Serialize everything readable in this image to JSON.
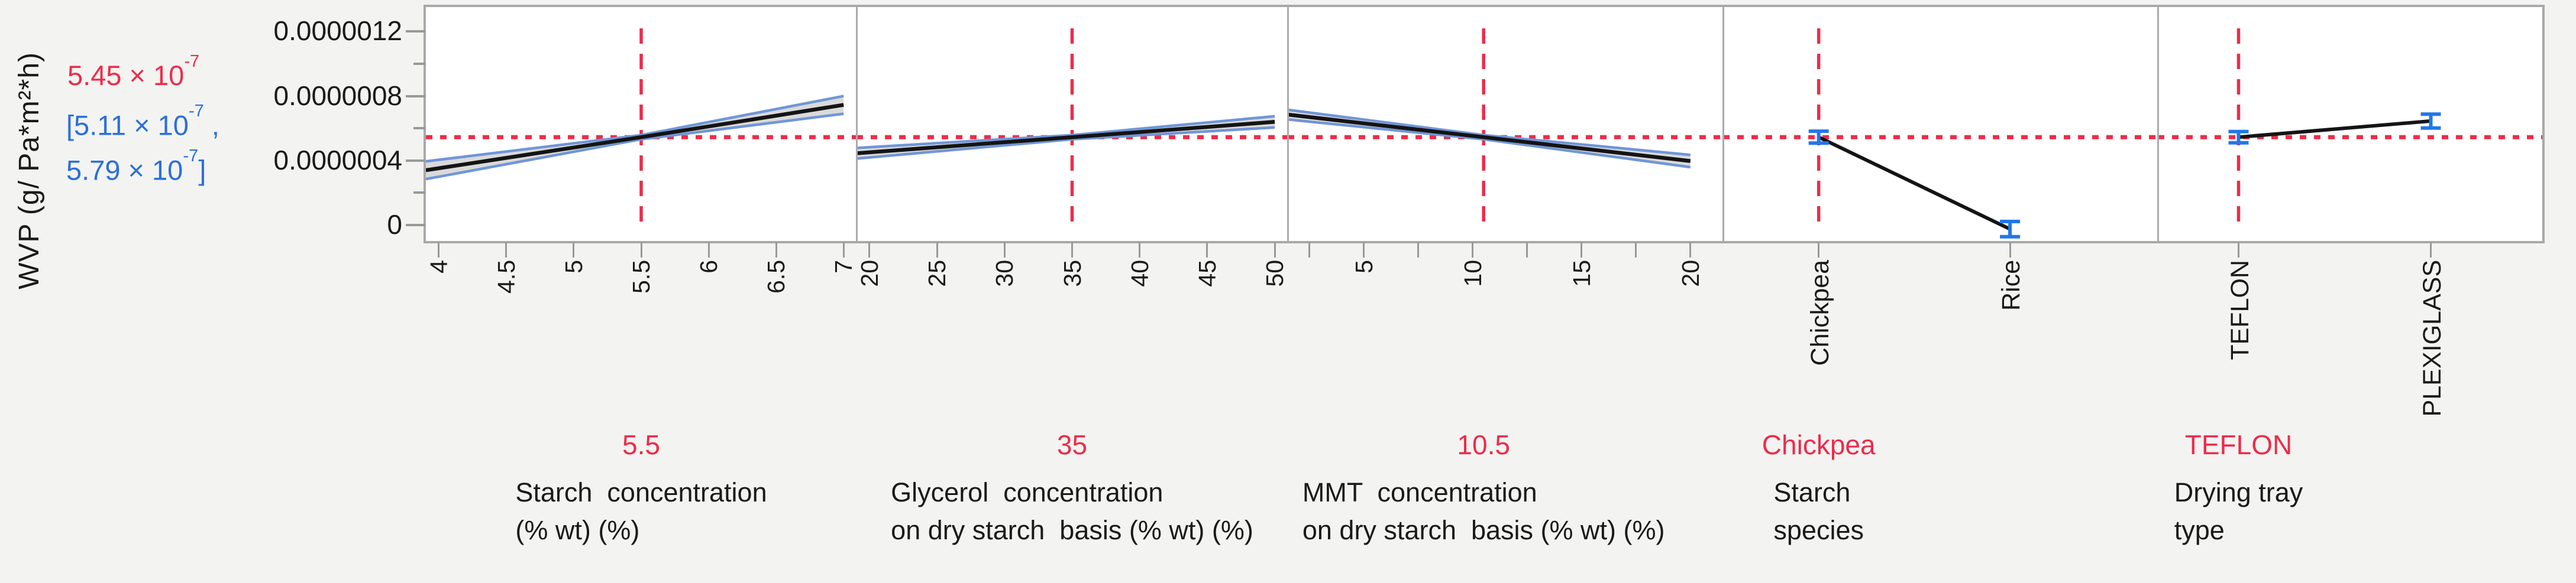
{
  "page": {
    "background": "#f3f3f2"
  },
  "colors": {
    "red": "#ED2C49",
    "blue_text": "#2B6FD9",
    "blue_marker": "#2277E8",
    "band_fill": "#DADADA",
    "band_edge": "#7096D8",
    "mean_line": "#141414",
    "panel_border": "#A9A9A9",
    "tick": "#999999",
    "text": "#1A1A1A",
    "panel_bg": "#FFFFFF"
  },
  "response": {
    "axis_label_line1": "WVP (g/",
    "axis_label_line2": "Pa*m²*h)",
    "predicted_base": "5.45 × 10",
    "predicted_exp": "-7",
    "ci_line1_base": "[5.11 × 10",
    "ci_line1_exp": "-7",
    "ci_line1_tail": " ,",
    "ci_line2_base": "5.79 × 10",
    "ci_line2_exp": "-7",
    "ci_line2_tail": "]"
  },
  "chart_data": {
    "type": "line",
    "subtype": "prediction-profiler",
    "value_unit": "1e-7 g/(Pa*m^2*h)",
    "predicted_value": 5.45,
    "predicted_ci": [
      5.11,
      5.79
    ],
    "y_axis": {
      "major_ticks": [
        {
          "v": 0,
          "label": "0"
        },
        {
          "v": 4,
          "label": "0.0000004"
        },
        {
          "v": 8,
          "label": "0.0000008"
        },
        {
          "v": 12,
          "label": "0.0000012"
        }
      ],
      "minor_tick_values": [
        2,
        6,
        10
      ]
    },
    "factors": [
      {
        "id": "starch-concentration",
        "type": "continuous",
        "current_value_label": "5.5",
        "current_value": 5.5,
        "name_lines": [
          "Starch  concentration",
          "(% wt) (%)"
        ],
        "crosshair_f": 0.5,
        "ticks": [
          {
            "f": 0.03,
            "label": "4"
          },
          {
            "f": 0.18667,
            "label": "4.5"
          },
          {
            "f": 0.34333,
            "label": "5"
          },
          {
            "f": 0.5,
            "label": "5.5"
          },
          {
            "f": 0.65667,
            "label": "6"
          },
          {
            "f": 0.81333,
            "label": "6.5"
          },
          {
            "f": 0.97,
            "label": "7"
          }
        ],
        "mean": [
          [
            0,
            3.4
          ],
          [
            0.5,
            5.45
          ],
          [
            0.97,
            7.45
          ]
        ],
        "band_top": [
          [
            0,
            3.95
          ],
          [
            0.5,
            5.58
          ],
          [
            0.97,
            8.0
          ]
        ],
        "band_bottom": [
          [
            0,
            2.85
          ],
          [
            0.5,
            5.32
          ],
          [
            0.97,
            6.9
          ]
        ]
      },
      {
        "id": "glycerol-concentration",
        "type": "continuous",
        "current_value_label": "35",
        "current_value": 35,
        "name_lines": [
          "Glycerol  concentration",
          "on dry starch  basis (% wt) (%)"
        ],
        "crosshair_f": 0.5,
        "ticks": [
          {
            "f": 0.03,
            "label": "20"
          },
          {
            "f": 0.18667,
            "label": "25"
          },
          {
            "f": 0.34333,
            "label": "30"
          },
          {
            "f": 0.5,
            "label": "35"
          },
          {
            "f": 0.65667,
            "label": "40"
          },
          {
            "f": 0.81333,
            "label": "45"
          },
          {
            "f": 0.97,
            "label": "50"
          }
        ],
        "mean": [
          [
            0,
            4.45
          ],
          [
            0.5,
            5.45
          ],
          [
            0.97,
            6.4
          ]
        ],
        "band_top": [
          [
            0,
            4.78
          ],
          [
            0.5,
            5.58
          ],
          [
            0.97,
            6.75
          ]
        ],
        "band_bottom": [
          [
            0,
            4.12
          ],
          [
            0.5,
            5.32
          ],
          [
            0.97,
            6.05
          ]
        ]
      },
      {
        "id": "mmt-concentration",
        "type": "continuous",
        "current_value_label": "10.5",
        "current_value": 10.5,
        "name_lines": [
          "MMT  concentration",
          "on dry starch  basis (% wt) (%)"
        ],
        "crosshair_f": 0.45,
        "ticks": [
          {
            "f": 0.05,
            "label": ""
          },
          {
            "f": 0.175,
            "label": "5"
          },
          {
            "f": 0.3,
            "label": ""
          },
          {
            "f": 0.425,
            "label": "10"
          },
          {
            "f": 0.55,
            "label": ""
          },
          {
            "f": 0.675,
            "label": "15"
          },
          {
            "f": 0.8,
            "label": ""
          },
          {
            "f": 0.925,
            "label": "20"
          }
        ],
        "mean": [
          [
            0,
            6.85
          ],
          [
            0.45,
            5.45
          ],
          [
            0.925,
            3.97
          ]
        ],
        "band_top": [
          [
            0,
            7.15
          ],
          [
            0.45,
            5.58
          ],
          [
            0.925,
            4.35
          ]
        ],
        "band_bottom": [
          [
            0,
            6.55
          ],
          [
            0.45,
            5.32
          ],
          [
            0.925,
            3.59
          ]
        ]
      },
      {
        "id": "starch-species",
        "type": "categorical",
        "current_value_label": "Chickpea",
        "name_lines": [
          "Starch",
          "species"
        ],
        "crosshair_f": 0.22,
        "categories": [
          {
            "label": "Chickpea",
            "f": 0.22,
            "value": 5.45,
            "ci_low": 5.08,
            "ci_high": 5.82
          },
          {
            "label": "Rice",
            "f": 0.66,
            "value": -0.25,
            "ci_low": -0.72,
            "ci_high": 0.22
          }
        ]
      },
      {
        "id": "drying-tray-type",
        "type": "categorical",
        "current_value_label": "TEFLON",
        "name_lines": [
          "Drying tray",
          "type"
        ],
        "crosshair_f": 0.21,
        "categories": [
          {
            "label": "TEFLON",
            "f": 0.21,
            "value": 5.45,
            "ci_low": 5.1,
            "ci_high": 5.8
          },
          {
            "label": "PLEXIGLASS",
            "f": 0.71,
            "value": 6.45,
            "ci_low": 6.02,
            "ci_high": 6.88
          }
        ]
      }
    ]
  }
}
